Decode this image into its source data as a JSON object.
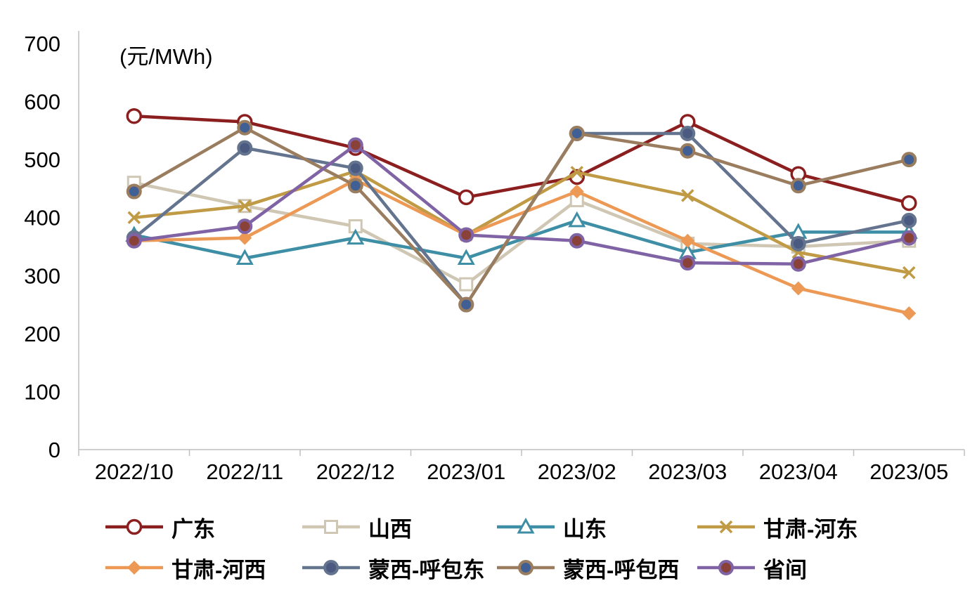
{
  "unit_label": "(元/MWh)",
  "chart_data": {
    "type": "line",
    "title": "",
    "xlabel": "",
    "ylabel": "元/MWh",
    "unit_label": "(元/MWh)",
    "ylim": [
      0,
      700
    ],
    "yticks": [
      0,
      100,
      200,
      300,
      400,
      500,
      600,
      700
    ],
    "grid": false,
    "legend_position": "bottom",
    "categories": [
      "2022/10",
      "2022/11",
      "2022/12",
      "2023/01",
      "2023/02",
      "2023/03",
      "2023/04",
      "2023/05"
    ],
    "series": [
      {
        "name": "广东",
        "color": "#8B1E1E",
        "marker": "open-circle",
        "values": [
          575,
          565,
          520,
          435,
          470,
          565,
          475,
          425
        ]
      },
      {
        "name": "山西",
        "color": "#CFC7B3",
        "marker": "open-square",
        "values": [
          460,
          420,
          385,
          285,
          430,
          355,
          350,
          360
        ]
      },
      {
        "name": "山东",
        "color": "#3E8EA5",
        "marker": "open-triangle",
        "values": [
          370,
          330,
          365,
          330,
          395,
          340,
          375,
          375
        ]
      },
      {
        "name": "甘肃-河东",
        "color": "#C09A45",
        "marker": "x",
        "values": [
          400,
          420,
          480,
          370,
          478,
          438,
          340,
          305
        ]
      },
      {
        "name": "甘肃-河西",
        "color": "#EC9955",
        "marker": "diamond",
        "values": [
          360,
          365,
          465,
          370,
          445,
          360,
          278,
          235
        ]
      },
      {
        "name": "蒙西-呼包东",
        "color": "#64748F",
        "marker": "filled-circle",
        "marker_fill": "#4A5A80",
        "values": [
          365,
          520,
          485,
          250,
          545,
          545,
          355,
          395
        ]
      },
      {
        "name": "蒙西-呼包西",
        "color": "#9A7D5F",
        "marker": "filled-circle",
        "marker_fill": "#3F5F95",
        "values": [
          445,
          555,
          455,
          250,
          545,
          515,
          455,
          500
        ]
      },
      {
        "name": "省间",
        "color": "#7F63A5",
        "marker": "filled-circle",
        "marker_fill": "#8A4238",
        "values": [
          360,
          385,
          525,
          370,
          360,
          322,
          320,
          365
        ]
      }
    ]
  }
}
